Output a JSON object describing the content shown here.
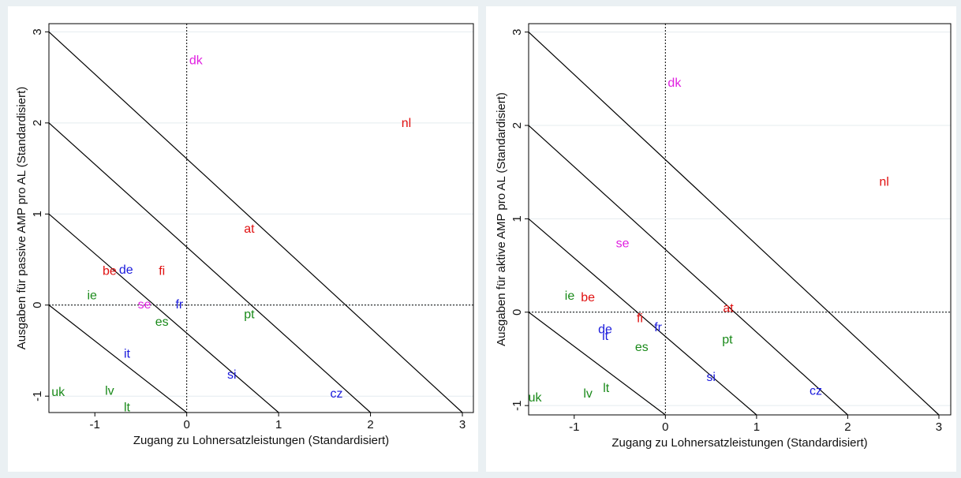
{
  "chart_data": [
    {
      "type": "scatter",
      "x_label": "Zugang zu Lohnersatzleistungen (Standardisiert)",
      "y_label": "Ausgaben für passive AMP pro AL (Standardisiert)",
      "xlim": [
        -1.5,
        3.12
      ],
      "ylim": [
        -1.18,
        3.09
      ],
      "xticks": [
        -1,
        0,
        1,
        2,
        3
      ],
      "yticks": [
        -1,
        0,
        1,
        2,
        3
      ],
      "grid": true,
      "labels": [
        "dk",
        "nl",
        "at",
        "be",
        "de",
        "fi",
        "ie",
        "se",
        "fr",
        "es",
        "pt",
        "it",
        "si",
        "cz",
        "uk",
        "lv",
        "lt"
      ],
      "x": [
        0.1,
        2.39,
        0.68,
        -0.84,
        -0.66,
        -0.27,
        -1.03,
        -0.46,
        -0.08,
        -0.27,
        0.68,
        -0.65,
        0.49,
        1.63,
        -1.4,
        -0.84,
        -0.65
      ],
      "values": [
        2.68,
        1.99,
        0.83,
        0.37,
        0.38,
        0.37,
        0.1,
        0.0,
        0.0,
        -0.19,
        -0.11,
        -0.54,
        -0.77,
        -0.98,
        -0.96,
        -0.95,
        -1.13
      ],
      "colors": [
        "#e020e0",
        "#e01010",
        "#e01010",
        "#e01010",
        "#1a1adc",
        "#e01010",
        "#1a8a1a",
        "#e020e0",
        "#1a1adc",
        "#1a8a1a",
        "#1a8a1a",
        "#1a1adc",
        "#1a1adc",
        "#1a1adc",
        "#1a8a1a",
        "#1a8a1a",
        "#1a8a1a"
      ],
      "reference_lines": [
        {
          "x": [
            -1.5,
            3
          ],
          "y": [
            3,
            -1.18
          ]
        },
        {
          "x": [
            -1.5,
            2
          ],
          "y": [
            2,
            -1.18
          ]
        },
        {
          "x": [
            -1.5,
            1
          ],
          "y": [
            1,
            -1.18
          ]
        },
        {
          "x": [
            -1.5,
            0
          ],
          "y": [
            0,
            -1.18
          ]
        }
      ],
      "zero_lines": true
    },
    {
      "type": "scatter",
      "x_label": "Zugang zu Lohnersatzleistungen (Standardisiert)",
      "y_label": "Ausgaben für aktive AMP pro AL (Standardisiert)",
      "xlim": [
        -1.5,
        3.13
      ],
      "ylim": [
        -1.1,
        3.09
      ],
      "xticks": [
        -1,
        0,
        1,
        2,
        3
      ],
      "yticks": [
        -1,
        0,
        1,
        2,
        3
      ],
      "grid": true,
      "labels": [
        "dk",
        "nl",
        "se",
        "ie",
        "be",
        "at",
        "fi",
        "de",
        "it",
        "fr",
        "es",
        "pt",
        "si",
        "cz",
        "uk",
        "lv",
        "lt"
      ],
      "x": [
        0.1,
        2.4,
        -0.47,
        -1.05,
        -0.85,
        0.69,
        -0.28,
        -0.66,
        -0.66,
        -0.08,
        -0.26,
        0.68,
        0.5,
        1.65,
        -1.43,
        -0.85,
        -0.65
      ],
      "values": [
        2.45,
        1.39,
        0.73,
        0.17,
        0.15,
        0.04,
        -0.07,
        -0.19,
        -0.26,
        -0.17,
        -0.38,
        -0.3,
        -0.7,
        -0.85,
        -0.92,
        -0.88,
        -0.82
      ],
      "colors": [
        "#e020e0",
        "#e01010",
        "#e020e0",
        "#1a8a1a",
        "#e01010",
        "#e01010",
        "#e01010",
        "#1a1adc",
        "#1a1adc",
        "#1a1adc",
        "#1a8a1a",
        "#1a8a1a",
        "#1a1adc",
        "#1a1adc",
        "#1a8a1a",
        "#1a8a1a",
        "#1a8a1a"
      ],
      "reference_lines": [
        {
          "x": [
            -1.5,
            3
          ],
          "y": [
            3,
            -1.1
          ]
        },
        {
          "x": [
            -1.5,
            2
          ],
          "y": [
            2,
            -1.1
          ]
        },
        {
          "x": [
            -1.5,
            1
          ],
          "y": [
            1,
            -1.1
          ]
        },
        {
          "x": [
            -1.5,
            0
          ],
          "y": [
            0,
            -1.1
          ]
        }
      ],
      "zero_lines": true
    }
  ]
}
